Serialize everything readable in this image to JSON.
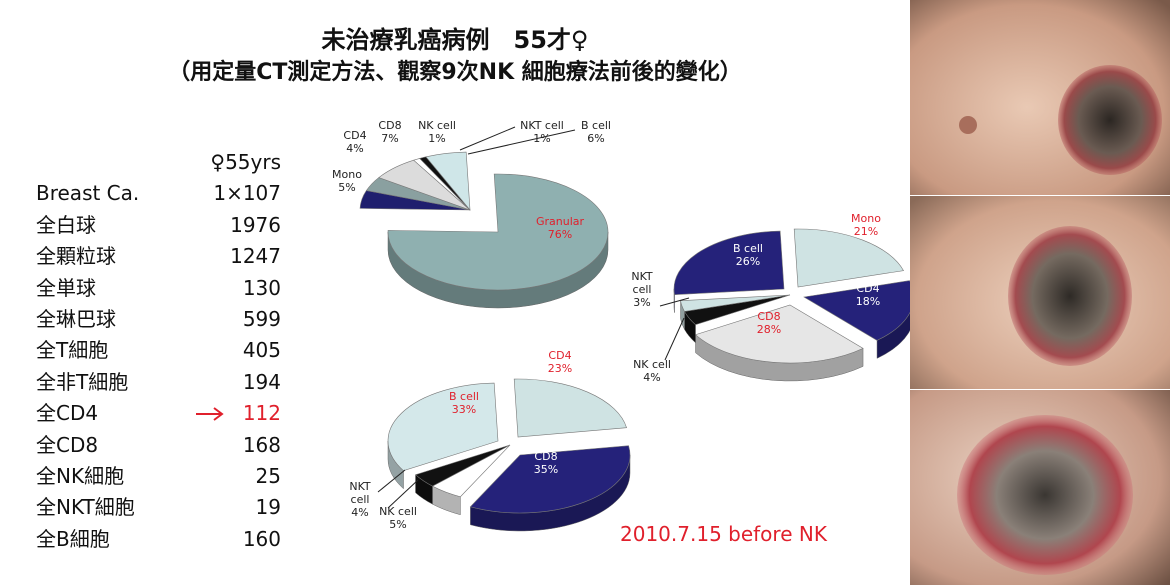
{
  "header": {
    "title_line1": "未治療乳癌病例　55才♀",
    "title_line2": "（用定量CT測定方法、觀察9次NK 細胞療法前後的變化）"
  },
  "table": {
    "header_value": "♀55yrs",
    "rows": [
      {
        "label": "Breast Ca.",
        "value": "1×107"
      },
      {
        "label": "全白球",
        "value": "1976"
      },
      {
        "label": "全顆粒球",
        "value": "1247"
      },
      {
        "label": "全単球",
        "value": "130"
      },
      {
        "label": "全琳巴球",
        "value": "599"
      },
      {
        "label": "全T細胞",
        "value": "405"
      },
      {
        "label": "全非T細胞",
        "value": "194"
      },
      {
        "label": "全CD4",
        "value": "112",
        "highlight": true
      },
      {
        "label": "全CD8",
        "value": "168"
      },
      {
        "label": "全NK細胞",
        "value": "25"
      },
      {
        "label": "全NKT細胞",
        "value": "19"
      },
      {
        "label": "全B細胞",
        "value": "160"
      }
    ]
  },
  "chart_data": [
    {
      "type": "pie",
      "slices": [
        {
          "label": "Granular",
          "value": 76,
          "pct": "76%",
          "color": "#8fb0b0"
        },
        {
          "label": "Mono",
          "value": 5,
          "pct": "5%",
          "color": "#1f1f6e"
        },
        {
          "label": "CD4",
          "value": 4,
          "pct": "4%",
          "color": "#8aa0a0"
        },
        {
          "label": "CD8",
          "value": 7,
          "pct": "7%",
          "color": "#dcdcdc"
        },
        {
          "label": "NK cell",
          "value": 1,
          "pct": "1%",
          "color": "#ffffff"
        },
        {
          "label": "NKT cell",
          "value": 1,
          "pct": "1%",
          "color": "#111111"
        },
        {
          "label": "B cell",
          "value": 6,
          "pct": "6%",
          "color": "#cfe6e8"
        }
      ]
    },
    {
      "type": "pie",
      "slices": [
        {
          "label": "Mono",
          "value": 21,
          "pct": "21%",
          "color": "#cfe3e3"
        },
        {
          "label": "CD4",
          "value": 18,
          "pct": "18%",
          "color": "#25227a"
        },
        {
          "label": "CD8",
          "value": 28,
          "pct": "28%",
          "color": "#e6e6e6"
        },
        {
          "label": "NK cell",
          "value": 4,
          "pct": "4%",
          "color": "#111111"
        },
        {
          "label": "NKT cell",
          "value": 3,
          "pct": "3%",
          "color": "#cfe3e3"
        },
        {
          "label": "B cell",
          "value": 26,
          "pct": "26%",
          "color": "#25227a"
        }
      ]
    },
    {
      "type": "pie",
      "slices": [
        {
          "label": "CD4",
          "value": 23,
          "pct": "23%",
          "color": "#cfe3e3"
        },
        {
          "label": "CD8",
          "value": 35,
          "pct": "35%",
          "color": "#25227a"
        },
        {
          "label": "NK cell",
          "value": 5,
          "pct": "5%",
          "color": "#ffffff"
        },
        {
          "label": "NKT cell",
          "value": 4,
          "pct": "4%",
          "color": "#111111"
        },
        {
          "label": "B cell",
          "value": 33,
          "pct": "33%",
          "color": "#d4e8ea"
        }
      ]
    }
  ],
  "footer": {
    "date_text": "2010.7.15 before NK"
  },
  "colors": {
    "highlight": "#e0202c"
  }
}
